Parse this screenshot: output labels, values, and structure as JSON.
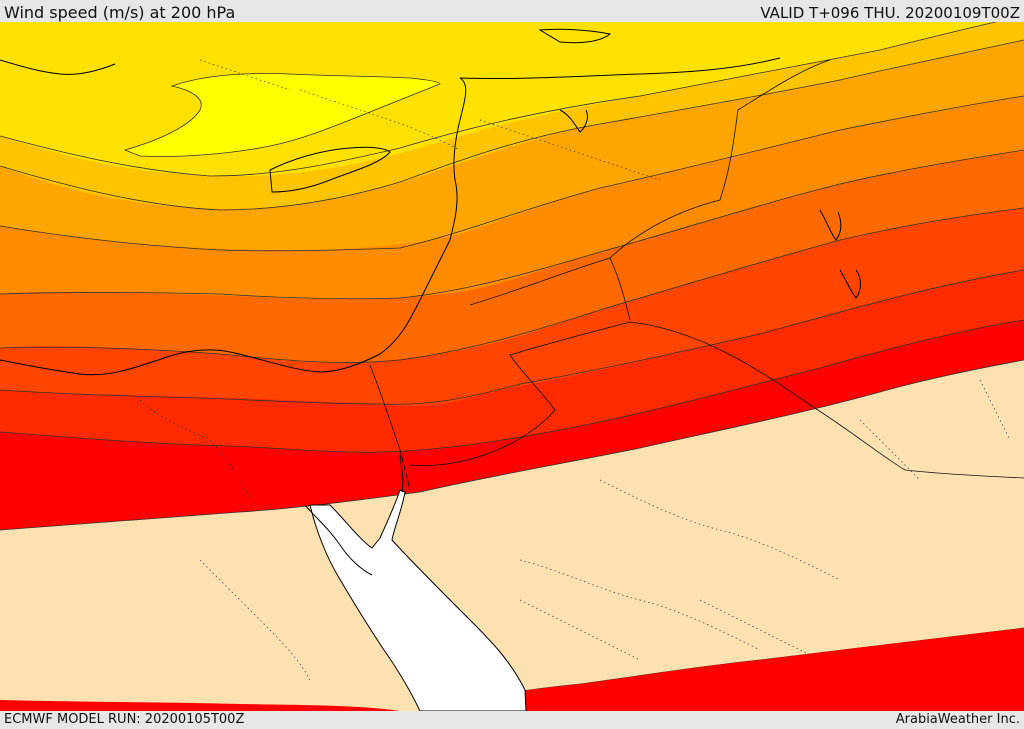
{
  "header": {
    "title": "Wind speed (m/s) at 200 hPa",
    "valid": "VALID T+096 THU. 20200109T00Z"
  },
  "footer": {
    "model_run": "ECMWF MODEL RUN: 20200105T00Z",
    "credit": "ArabiaWeather Inc."
  },
  "map": {
    "region": "Eastern Mediterranean, Egypt, Levant, Red Sea and northern Arabia",
    "colors": {
      "calm": "#fde1b0",
      "yellow_light": "#ffff00",
      "yellow": "#ffe100",
      "amber": "#ffc400",
      "orange_light": "#ffa500",
      "orange": "#ff8c00",
      "orange_dark": "#ff6a00",
      "red_orange": "#ff4500",
      "red_dark_orange": "#ff2a00",
      "red": "#ff0000",
      "sea_gap": "#ffffff"
    }
  }
}
